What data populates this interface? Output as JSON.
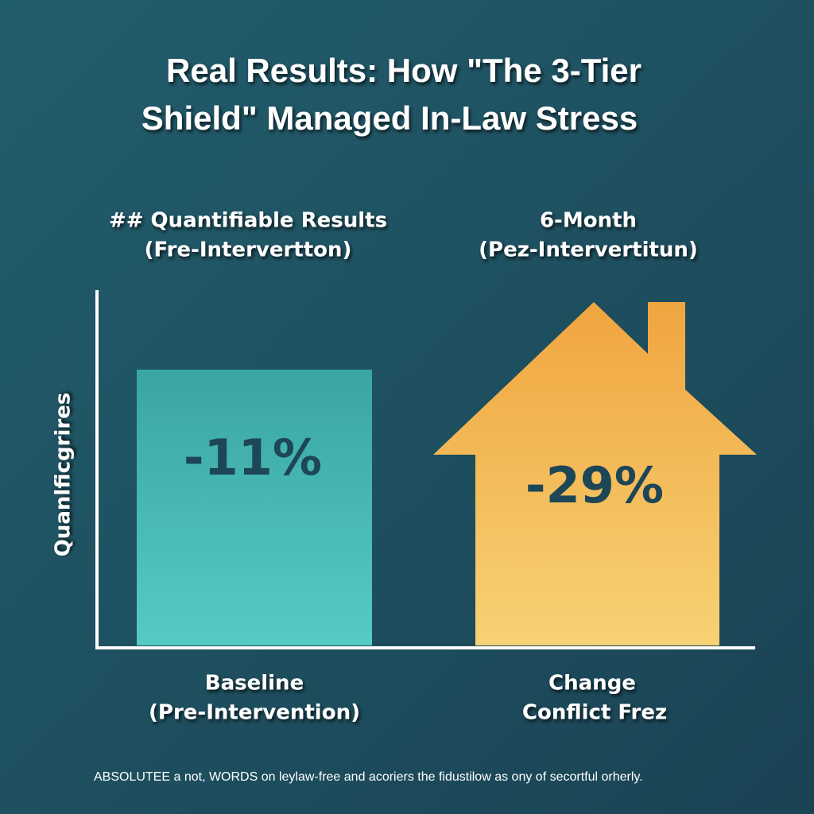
{
  "title": {
    "line1": "Real Results: How \"The 3-Tier",
    "line2": "Shield\" Managed In-Law Stress"
  },
  "columns": [
    {
      "header1": "## Quantifiable Results",
      "header2": "(Fre-Intervertton)",
      "value": "-11%",
      "label1": "Baseline",
      "label2": "(Pre-Intervention)"
    },
    {
      "header1": "6-Month",
      "header2": "(Pez-Intervertitun)",
      "value": "-29%",
      "label1": "Change",
      "label2": "Conflict Frez"
    }
  ],
  "axis_label": "Quanlficgrires",
  "footer": "ABSOLUTEE a not, WORDS on leylaw-free and acoriers the fidustilow as ony of secortful orherly."
}
